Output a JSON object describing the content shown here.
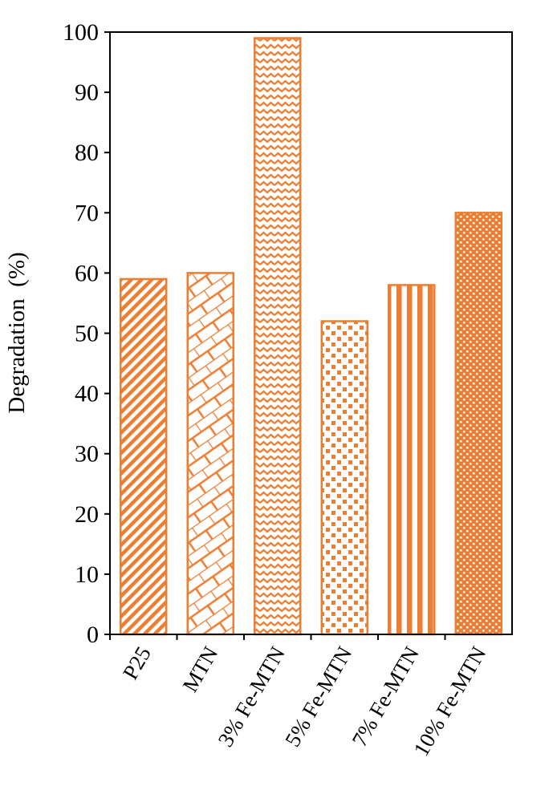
{
  "chart_data": {
    "type": "bar",
    "title": "",
    "xlabel": "",
    "ylabel": "Degradation  (%)",
    "ylim": [
      0,
      100
    ],
    "yticks": [
      0,
      10,
      20,
      30,
      40,
      50,
      60,
      70,
      80,
      90,
      100
    ],
    "grid": false,
    "categories": [
      "P25",
      "MTN",
      "3% Fe-MTN",
      "5% Fe-MTN",
      "7% Fe-MTN",
      "10% Fe-MTN"
    ],
    "values": [
      59,
      60,
      99,
      52,
      58,
      70
    ],
    "patterns": [
      "diagonal-stripes",
      "brick",
      "wave",
      "checker-sparse",
      "vertical-stripes",
      "dense-checker"
    ],
    "bar_color": "#ED7D31"
  }
}
